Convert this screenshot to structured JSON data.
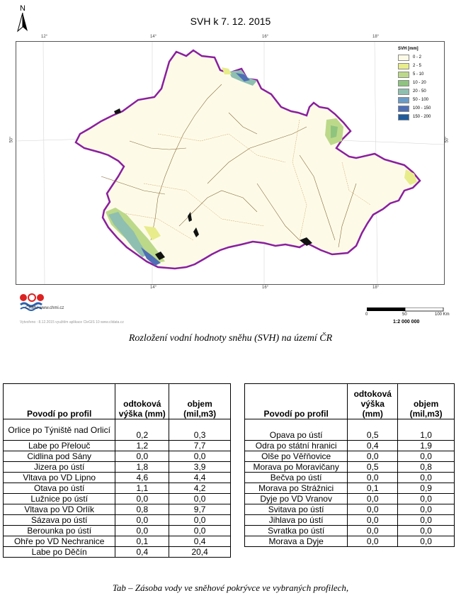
{
  "map": {
    "title": "SVH k 7. 12. 2015",
    "north_label": "N",
    "longitude_ticks": [
      "12°",
      "14°",
      "16°",
      "18°"
    ],
    "latitude_tick": "50°",
    "legend": {
      "title": "SVH [mm]",
      "items": [
        {
          "label": "0 - 2",
          "color": "#fdfbe6"
        },
        {
          "label": "2 - 5",
          "color": "#e8ec8a"
        },
        {
          "label": "5 - 10",
          "color": "#bcd98a"
        },
        {
          "label": "10 - 20",
          "color": "#8fc47e"
        },
        {
          "label": "20 - 50",
          "color": "#8fbfb0"
        },
        {
          "label": "50 - 100",
          "color": "#6a9bc7"
        },
        {
          "label": "100 - 150",
          "color": "#4e6fb5"
        },
        {
          "label": "150 - 200",
          "color": "#1f5c9e"
        }
      ]
    },
    "logo_text": "ČHMÚ www.chmi.cz",
    "credit": "Vytvořeno : 8.12.2015 využitím aplikace CleGIS 10 www.clidata.cz",
    "scale_labels": [
      "0",
      "50",
      "100 Km"
    ],
    "scale_ratio": "1:2 000 000",
    "caption": "Rozložení vodní hodnoty sněhu (SVH) na území ČR"
  },
  "table": {
    "header": {
      "profile": "Povodí po profil",
      "height": "odtoková výška (mm)",
      "volume": "objem (mil,m3)"
    },
    "left_rows": [
      {
        "profile": "Orlice po Týniště nad Orlicí",
        "height": "0,2",
        "volume": "0,3"
      },
      {
        "profile": "Labe po Přelouč",
        "height": "1,2",
        "volume": "7,7"
      },
      {
        "profile": "Cidlina pod Sány",
        "height": "0,0",
        "volume": "0,0"
      },
      {
        "profile": "Jizera po ústí",
        "height": "1,8",
        "volume": "3,9"
      },
      {
        "profile": "Vltava po VD Lipno",
        "height": "4,6",
        "volume": "4,4"
      },
      {
        "profile": "Otava po ústí",
        "height": "1,1",
        "volume": "4,2"
      },
      {
        "profile": "Lužnice po ústí",
        "height": "0,0",
        "volume": "0,0"
      },
      {
        "profile": "Vltava po VD Orlík",
        "height": "0,8",
        "volume": "9,7"
      },
      {
        "profile": "Sázava po ústí",
        "height": "0,0",
        "volume": "0,0"
      },
      {
        "profile": "Berounka po ústí",
        "height": "0,0",
        "volume": "0,0"
      },
      {
        "profile": "Ohře po VD Nechranice",
        "height": "0,1",
        "volume": "0,4"
      },
      {
        "profile": "Labe po Děčín",
        "height": "0,4",
        "volume": "20,4"
      }
    ],
    "right_rows": [
      {
        "profile": "Opava po ústí",
        "height": "0,5",
        "volume": "1,0"
      },
      {
        "profile": "Odra po státní hranici",
        "height": "0,4",
        "volume": "1,9"
      },
      {
        "profile": "Olše po Věřňovice",
        "height": "0,0",
        "volume": "0,0"
      },
      {
        "profile": "Morava po Moravičany",
        "height": "0,5",
        "volume": "0,8"
      },
      {
        "profile": "Bečva po ústí",
        "height": "0,0",
        "volume": "0,0"
      },
      {
        "profile": "Morava po Strážnici",
        "height": "0,1",
        "volume": "0,9"
      },
      {
        "profile": "Dyje po VD Vranov",
        "height": "0,0",
        "volume": "0,0"
      },
      {
        "profile": "Svitava po ústí",
        "height": "0,0",
        "volume": "0,0"
      },
      {
        "profile": "Jihlava po ústí",
        "height": "0,0",
        "volume": "0,0"
      },
      {
        "profile": "Svratka po ústí",
        "height": "0,0",
        "volume": "0,0"
      },
      {
        "profile": "Morava a Dyje",
        "height": "0,0",
        "volume": "0,0"
      }
    ],
    "caption": "Tab – Zásoba vody ve sněhové pokrývce ve vybraných profilech,"
  }
}
